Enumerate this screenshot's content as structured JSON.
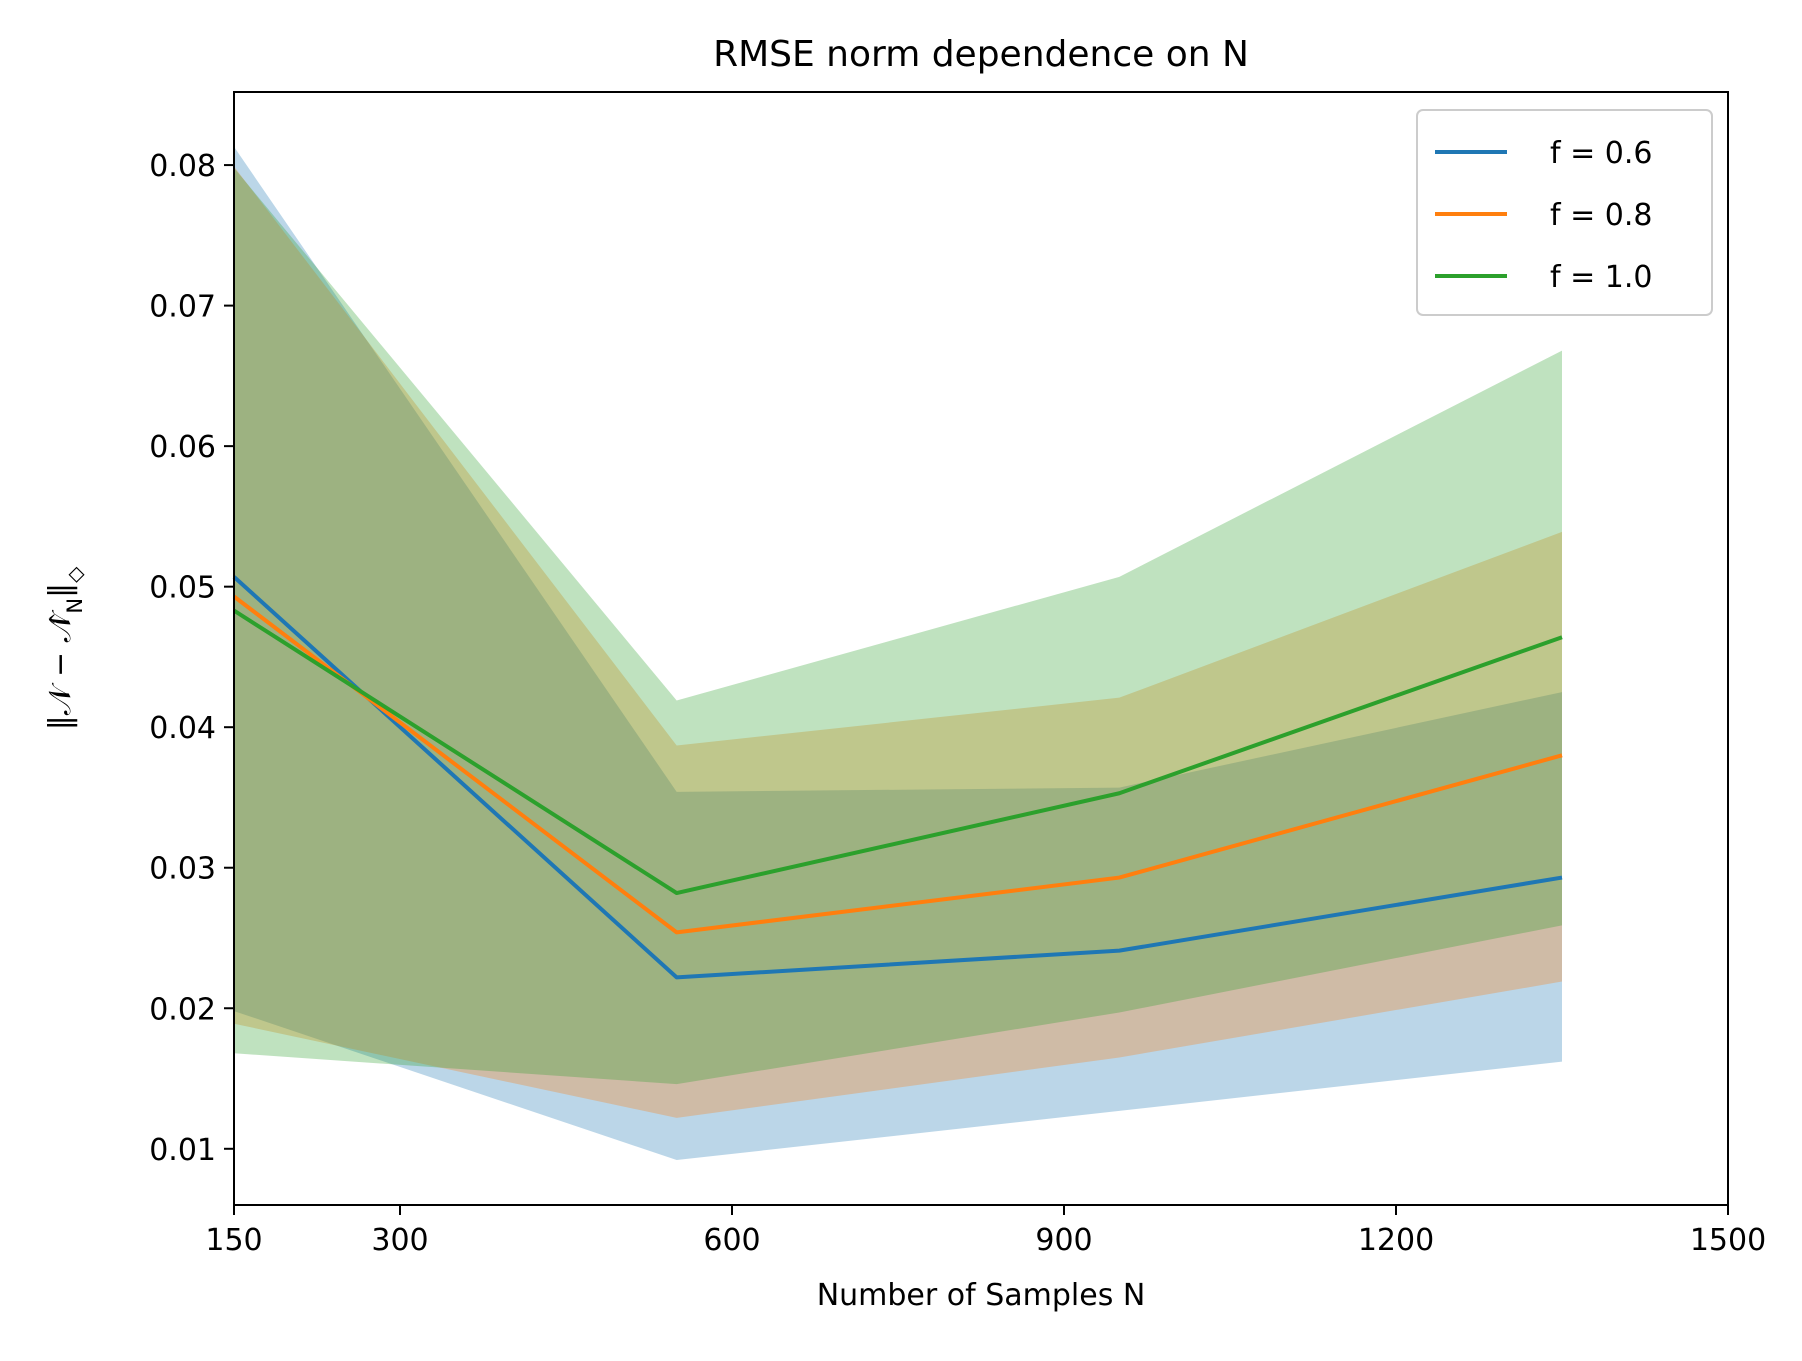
{
  "chart_data": {
    "type": "line",
    "title": "RMSE norm dependence on N",
    "xlabel": "Number of Samples N",
    "ylabel": "‖𝒩 − 𝒩̂_N‖◇",
    "xlim": [
      150,
      1500
    ],
    "ylim": [
      0.006,
      0.0852
    ],
    "xticks": [
      150,
      300,
      600,
      900,
      1200,
      1500
    ],
    "yticks": [
      0.01,
      0.02,
      0.03,
      0.04,
      0.05,
      0.06,
      0.07,
      0.08
    ],
    "ytick_labels": [
      "0.01",
      "0.02",
      "0.03",
      "0.04",
      "0.05",
      "0.06",
      "0.07",
      "0.08"
    ],
    "xtick_labels": [
      "150",
      "300",
      "600",
      "900",
      "1200",
      "1500"
    ],
    "x": [
      150,
      550,
      950,
      1350
    ],
    "grid": false,
    "legend_position": "top-right",
    "series": [
      {
        "name": "f = 0.6",
        "color": "#1f77b4",
        "values": [
          0.0507,
          0.0222,
          0.0241,
          0.0293
        ],
        "lower": [
          0.0198,
          0.0092,
          0.0127,
          0.0162
        ],
        "upper": [
          0.0813,
          0.0354,
          0.0357,
          0.0425
        ]
      },
      {
        "name": "f = 0.8",
        "color": "#ff7f0e",
        "values": [
          0.0493,
          0.0254,
          0.0293,
          0.038
        ],
        "lower": [
          0.0189,
          0.0122,
          0.0165,
          0.0219
        ],
        "upper": [
          0.0799,
          0.0387,
          0.0421,
          0.0539
        ]
      },
      {
        "name": "f = 1.0",
        "color": "#2ca02c",
        "values": [
          0.0483,
          0.0282,
          0.0353,
          0.0464
        ],
        "lower": [
          0.0168,
          0.0146,
          0.0197,
          0.0259
        ],
        "upper": [
          0.0798,
          0.0419,
          0.0507,
          0.0668
        ]
      }
    ]
  }
}
